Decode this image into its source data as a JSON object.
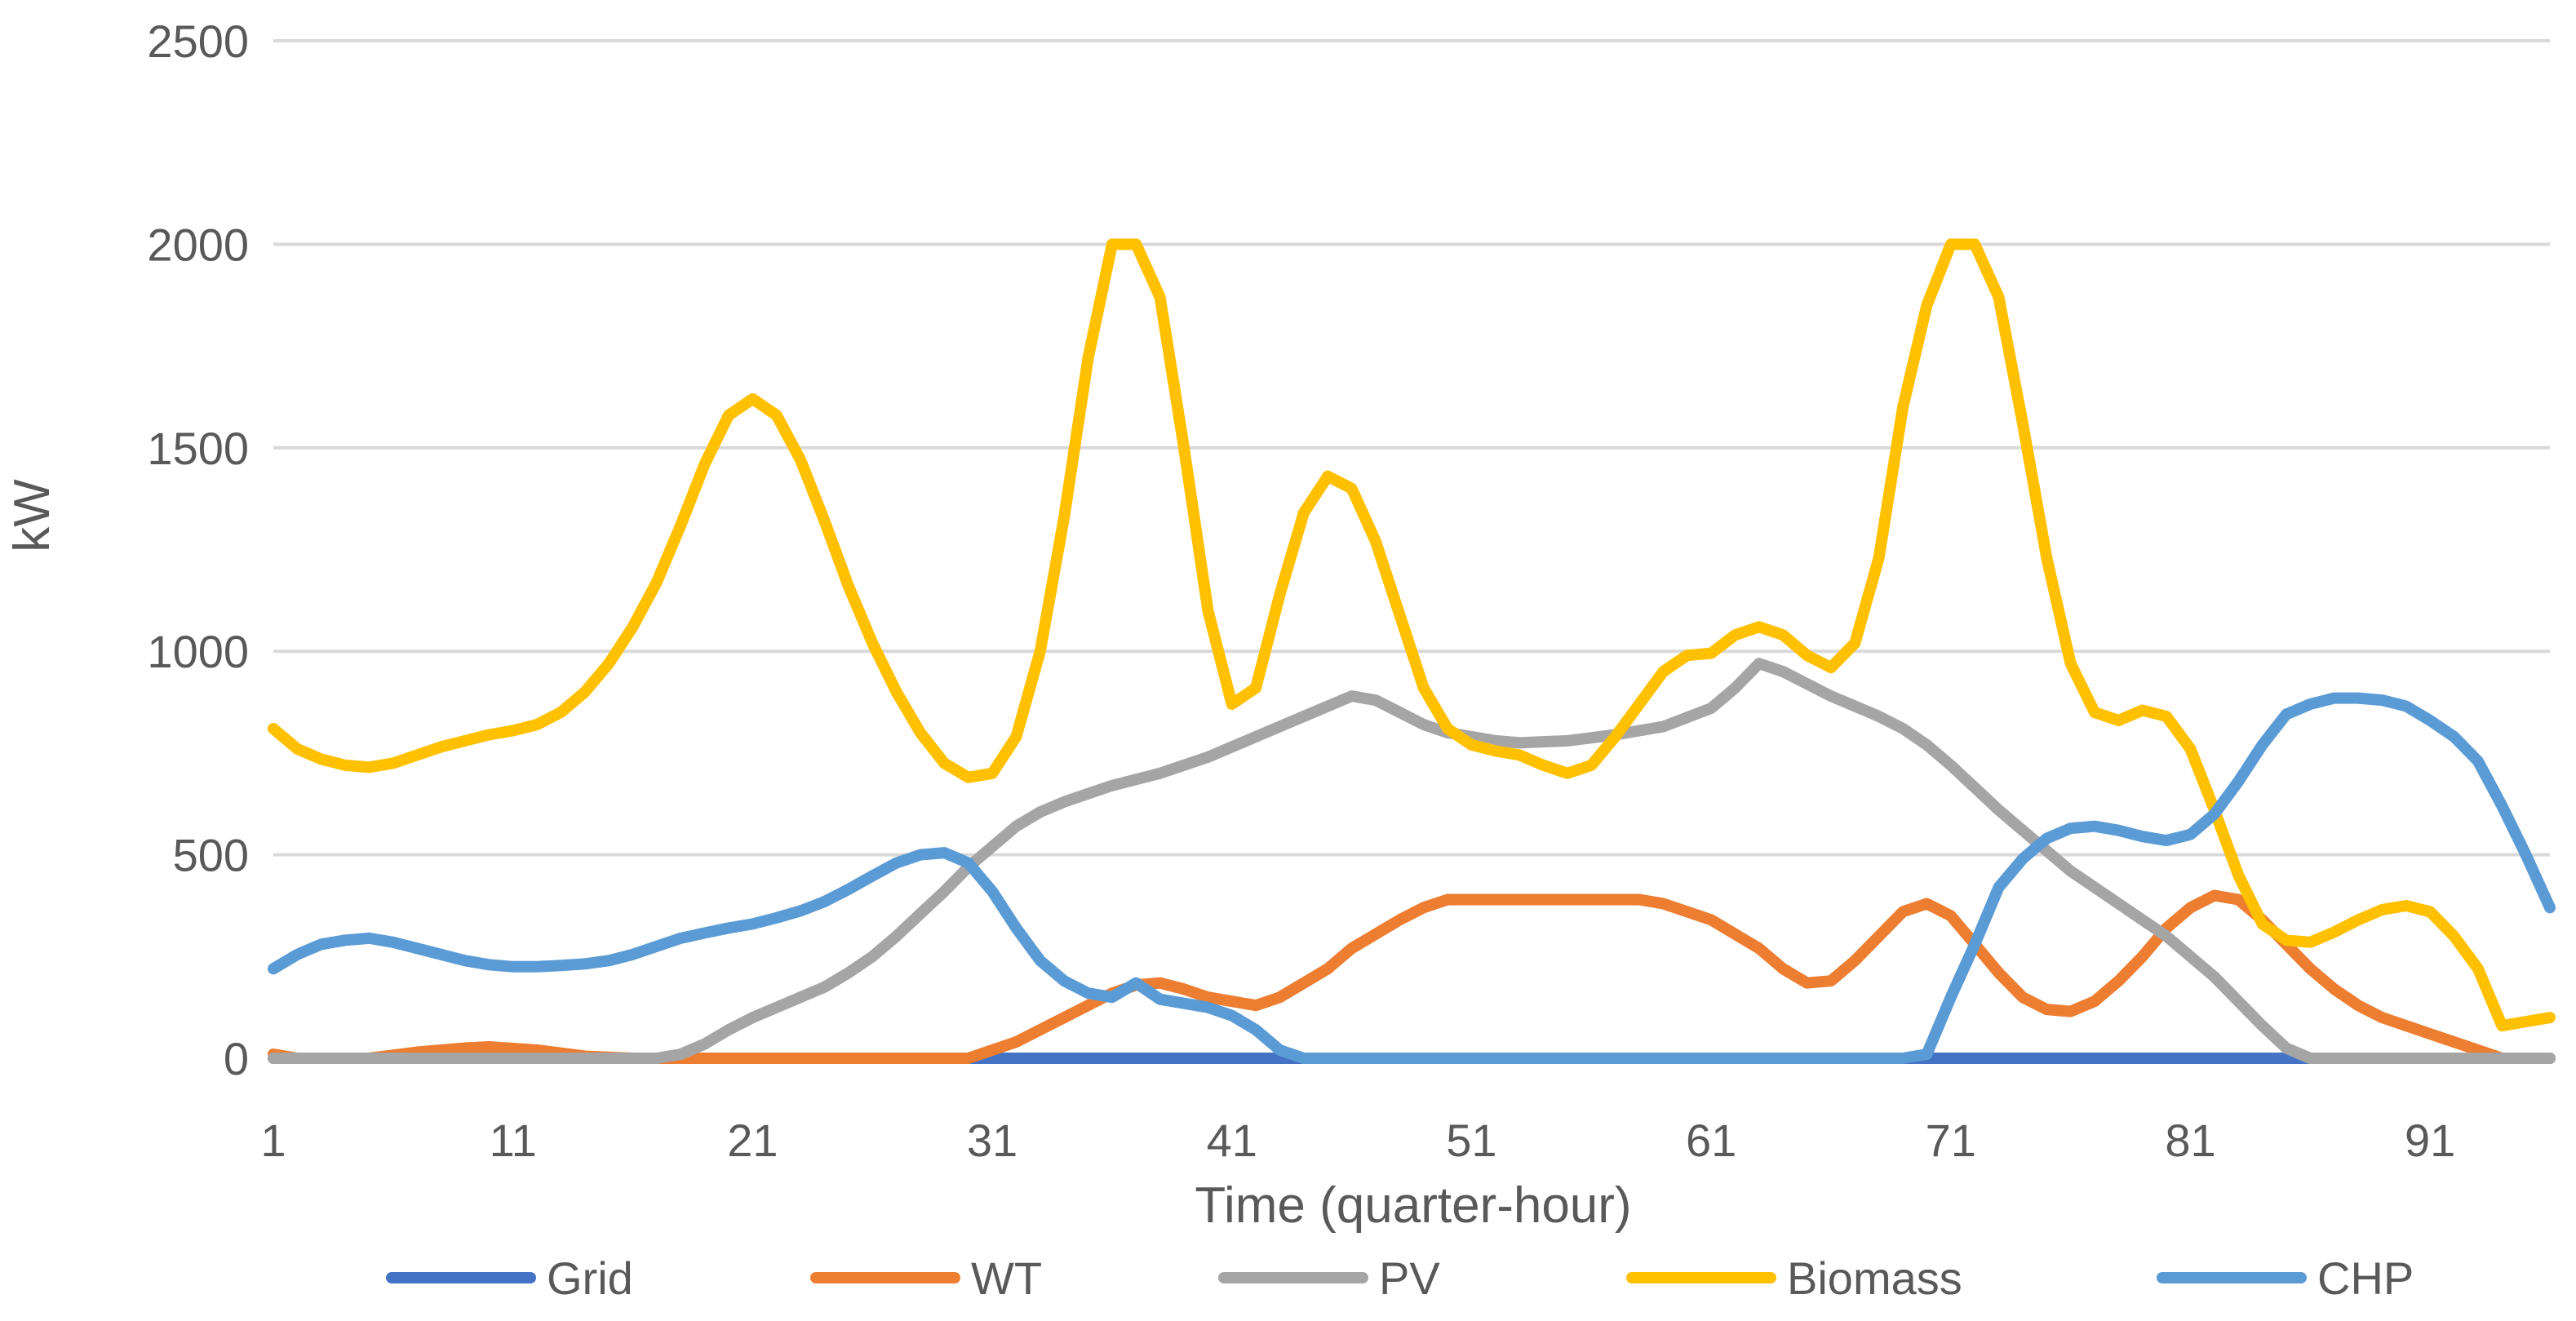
{
  "chart_data": {
    "type": "line",
    "title": "",
    "xlabel": "Time (quarter-hour)",
    "ylabel": "kW",
    "xlim": [
      1,
      96
    ],
    "ylim": [
      0,
      2500
    ],
    "yticks": [
      0,
      500,
      1000,
      1500,
      2000,
      2500
    ],
    "xticks": [
      1,
      11,
      21,
      31,
      41,
      51,
      61,
      71,
      81,
      91
    ],
    "grid": true,
    "legend_position": "bottom",
    "series": [
      {
        "name": "Grid",
        "color": "#4472C4",
        "points": [
          [
            1,
            0
          ],
          [
            96,
            0
          ]
        ]
      },
      {
        "name": "WT",
        "color": "#ED7D31",
        "points": [
          [
            1,
            10
          ],
          [
            2,
            0
          ],
          [
            5,
            0
          ],
          [
            7,
            15
          ],
          [
            9,
            25
          ],
          [
            10,
            28
          ],
          [
            12,
            20
          ],
          [
            14,
            5
          ],
          [
            16,
            0
          ],
          [
            30,
            0
          ],
          [
            32,
            40
          ],
          [
            34,
            100
          ],
          [
            36,
            160
          ],
          [
            37,
            180
          ],
          [
            38,
            185
          ],
          [
            39,
            170
          ],
          [
            40,
            150
          ],
          [
            42,
            130
          ],
          [
            43,
            150
          ],
          [
            45,
            220
          ],
          [
            46,
            270
          ],
          [
            48,
            340
          ],
          [
            49,
            370
          ],
          [
            50,
            390
          ],
          [
            58,
            390
          ],
          [
            59,
            380
          ],
          [
            61,
            340
          ],
          [
            63,
            270
          ],
          [
            64,
            220
          ],
          [
            65,
            185
          ],
          [
            66,
            190
          ],
          [
            67,
            240
          ],
          [
            68,
            300
          ],
          [
            69,
            360
          ],
          [
            70,
            380
          ],
          [
            71,
            350
          ],
          [
            72,
            280
          ],
          [
            73,
            210
          ],
          [
            74,
            150
          ],
          [
            75,
            120
          ],
          [
            76,
            115
          ],
          [
            77,
            140
          ],
          [
            78,
            190
          ],
          [
            79,
            250
          ],
          [
            80,
            320
          ],
          [
            81,
            370
          ],
          [
            82,
            400
          ],
          [
            83,
            390
          ],
          [
            84,
            340
          ],
          [
            85,
            280
          ],
          [
            86,
            220
          ],
          [
            87,
            170
          ],
          [
            88,
            130
          ],
          [
            89,
            100
          ],
          [
            91,
            60
          ],
          [
            93,
            20
          ],
          [
            94,
            0
          ],
          [
            96,
            0
          ]
        ]
      },
      {
        "name": "PV",
        "color": "#A5A5A5",
        "points": [
          [
            1,
            0
          ],
          [
            17,
            0
          ],
          [
            18,
            10
          ],
          [
            19,
            35
          ],
          [
            20,
            70
          ],
          [
            21,
            100
          ],
          [
            22,
            125
          ],
          [
            23,
            150
          ],
          [
            24,
            175
          ],
          [
            25,
            210
          ],
          [
            26,
            250
          ],
          [
            27,
            300
          ],
          [
            28,
            355
          ],
          [
            29,
            410
          ],
          [
            30,
            470
          ],
          [
            31,
            520
          ],
          [
            32,
            570
          ],
          [
            33,
            605
          ],
          [
            34,
            630
          ],
          [
            35,
            650
          ],
          [
            36,
            670
          ],
          [
            38,
            700
          ],
          [
            40,
            740
          ],
          [
            42,
            790
          ],
          [
            44,
            840
          ],
          [
            46,
            890
          ],
          [
            47,
            880
          ],
          [
            48,
            850
          ],
          [
            49,
            820
          ],
          [
            50,
            800
          ],
          [
            51,
            790
          ],
          [
            52,
            780
          ],
          [
            53,
            775
          ],
          [
            55,
            780
          ],
          [
            57,
            795
          ],
          [
            59,
            815
          ],
          [
            61,
            860
          ],
          [
            62,
            910
          ],
          [
            63,
            970
          ],
          [
            64,
            950
          ],
          [
            65,
            920
          ],
          [
            66,
            890
          ],
          [
            67,
            865
          ],
          [
            68,
            840
          ],
          [
            69,
            810
          ],
          [
            70,
            770
          ],
          [
            71,
            720
          ],
          [
            72,
            665
          ],
          [
            73,
            610
          ],
          [
            74,
            560
          ],
          [
            75,
            510
          ],
          [
            76,
            460
          ],
          [
            77,
            420
          ],
          [
            78,
            380
          ],
          [
            79,
            340
          ],
          [
            80,
            300
          ],
          [
            81,
            250
          ],
          [
            82,
            200
          ],
          [
            83,
            140
          ],
          [
            84,
            80
          ],
          [
            85,
            25
          ],
          [
            86,
            0
          ],
          [
            96,
            0
          ]
        ]
      },
      {
        "name": "Biomass",
        "color": "#FFC000",
        "points": [
          [
            1,
            810
          ],
          [
            2,
            760
          ],
          [
            3,
            735
          ],
          [
            4,
            720
          ],
          [
            5,
            715
          ],
          [
            6,
            725
          ],
          [
            7,
            745
          ],
          [
            8,
            765
          ],
          [
            9,
            780
          ],
          [
            10,
            795
          ],
          [
            11,
            805
          ],
          [
            12,
            820
          ],
          [
            13,
            850
          ],
          [
            14,
            900
          ],
          [
            15,
            970
          ],
          [
            16,
            1060
          ],
          [
            17,
            1170
          ],
          [
            18,
            1310
          ],
          [
            19,
            1460
          ],
          [
            20,
            1580
          ],
          [
            21,
            1620
          ],
          [
            22,
            1580
          ],
          [
            23,
            1470
          ],
          [
            24,
            1320
          ],
          [
            25,
            1160
          ],
          [
            26,
            1020
          ],
          [
            27,
            900
          ],
          [
            28,
            800
          ],
          [
            29,
            725
          ],
          [
            30,
            690
          ],
          [
            31,
            700
          ],
          [
            32,
            790
          ],
          [
            33,
            1000
          ],
          [
            34,
            1330
          ],
          [
            35,
            1720
          ],
          [
            36,
            2000
          ],
          [
            37,
            2000
          ],
          [
            38,
            1870
          ],
          [
            39,
            1500
          ],
          [
            40,
            1100
          ],
          [
            41,
            870
          ],
          [
            42,
            910
          ],
          [
            43,
            1140
          ],
          [
            44,
            1340
          ],
          [
            45,
            1430
          ],
          [
            46,
            1400
          ],
          [
            47,
            1270
          ],
          [
            48,
            1090
          ],
          [
            49,
            910
          ],
          [
            50,
            810
          ],
          [
            51,
            770
          ],
          [
            52,
            755
          ],
          [
            53,
            745
          ],
          [
            54,
            720
          ],
          [
            55,
            700
          ],
          [
            56,
            720
          ],
          [
            57,
            790
          ],
          [
            58,
            870
          ],
          [
            59,
            950
          ],
          [
            60,
            990
          ],
          [
            61,
            995
          ],
          [
            62,
            1040
          ],
          [
            63,
            1060
          ],
          [
            64,
            1040
          ],
          [
            65,
            990
          ],
          [
            66,
            960
          ],
          [
            67,
            1020
          ],
          [
            68,
            1230
          ],
          [
            69,
            1600
          ],
          [
            70,
            1850
          ],
          [
            71,
            2000
          ],
          [
            72,
            2000
          ],
          [
            73,
            1870
          ],
          [
            74,
            1560
          ],
          [
            75,
            1230
          ],
          [
            76,
            970
          ],
          [
            77,
            850
          ],
          [
            78,
            830
          ],
          [
            79,
            855
          ],
          [
            80,
            840
          ],
          [
            81,
            760
          ],
          [
            82,
            610
          ],
          [
            83,
            450
          ],
          [
            84,
            330
          ],
          [
            85,
            290
          ],
          [
            86,
            285
          ],
          [
            87,
            310
          ],
          [
            88,
            340
          ],
          [
            89,
            365
          ],
          [
            90,
            375
          ],
          [
            91,
            360
          ],
          [
            92,
            300
          ],
          [
            93,
            220
          ],
          [
            94,
            80
          ],
          [
            95,
            90
          ],
          [
            96,
            100
          ]
        ]
      },
      {
        "name": "CHP",
        "color": "#5B9BD5",
        "points": [
          [
            1,
            220
          ],
          [
            2,
            255
          ],
          [
            3,
            280
          ],
          [
            4,
            290
          ],
          [
            5,
            295
          ],
          [
            6,
            285
          ],
          [
            7,
            270
          ],
          [
            8,
            255
          ],
          [
            9,
            240
          ],
          [
            10,
            230
          ],
          [
            11,
            225
          ],
          [
            12,
            225
          ],
          [
            13,
            228
          ],
          [
            14,
            232
          ],
          [
            15,
            240
          ],
          [
            16,
            255
          ],
          [
            17,
            275
          ],
          [
            18,
            295
          ],
          [
            19,
            308
          ],
          [
            20,
            320
          ],
          [
            21,
            330
          ],
          [
            22,
            345
          ],
          [
            23,
            362
          ],
          [
            24,
            385
          ],
          [
            25,
            415
          ],
          [
            26,
            448
          ],
          [
            27,
            480
          ],
          [
            28,
            500
          ],
          [
            29,
            505
          ],
          [
            30,
            480
          ],
          [
            31,
            410
          ],
          [
            32,
            320
          ],
          [
            33,
            240
          ],
          [
            34,
            190
          ],
          [
            35,
            160
          ],
          [
            36,
            150
          ],
          [
            37,
            185
          ],
          [
            38,
            145
          ],
          [
            39,
            135
          ],
          [
            40,
            125
          ],
          [
            41,
            105
          ],
          [
            42,
            70
          ],
          [
            43,
            20
          ],
          [
            44,
            0
          ],
          [
            69,
            0
          ],
          [
            70,
            10
          ],
          [
            71,
            150
          ],
          [
            72,
            280
          ],
          [
            73,
            420
          ],
          [
            74,
            490
          ],
          [
            75,
            540
          ],
          [
            76,
            565
          ],
          [
            77,
            570
          ],
          [
            78,
            560
          ],
          [
            79,
            545
          ],
          [
            80,
            535
          ],
          [
            81,
            550
          ],
          [
            82,
            600
          ],
          [
            83,
            680
          ],
          [
            84,
            770
          ],
          [
            85,
            845
          ],
          [
            86,
            870
          ],
          [
            87,
            885
          ],
          [
            88,
            885
          ],
          [
            89,
            880
          ],
          [
            90,
            865
          ],
          [
            91,
            830
          ],
          [
            92,
            790
          ],
          [
            93,
            730
          ],
          [
            94,
            620
          ],
          [
            95,
            500
          ],
          [
            96,
            370
          ]
        ]
      }
    ]
  }
}
